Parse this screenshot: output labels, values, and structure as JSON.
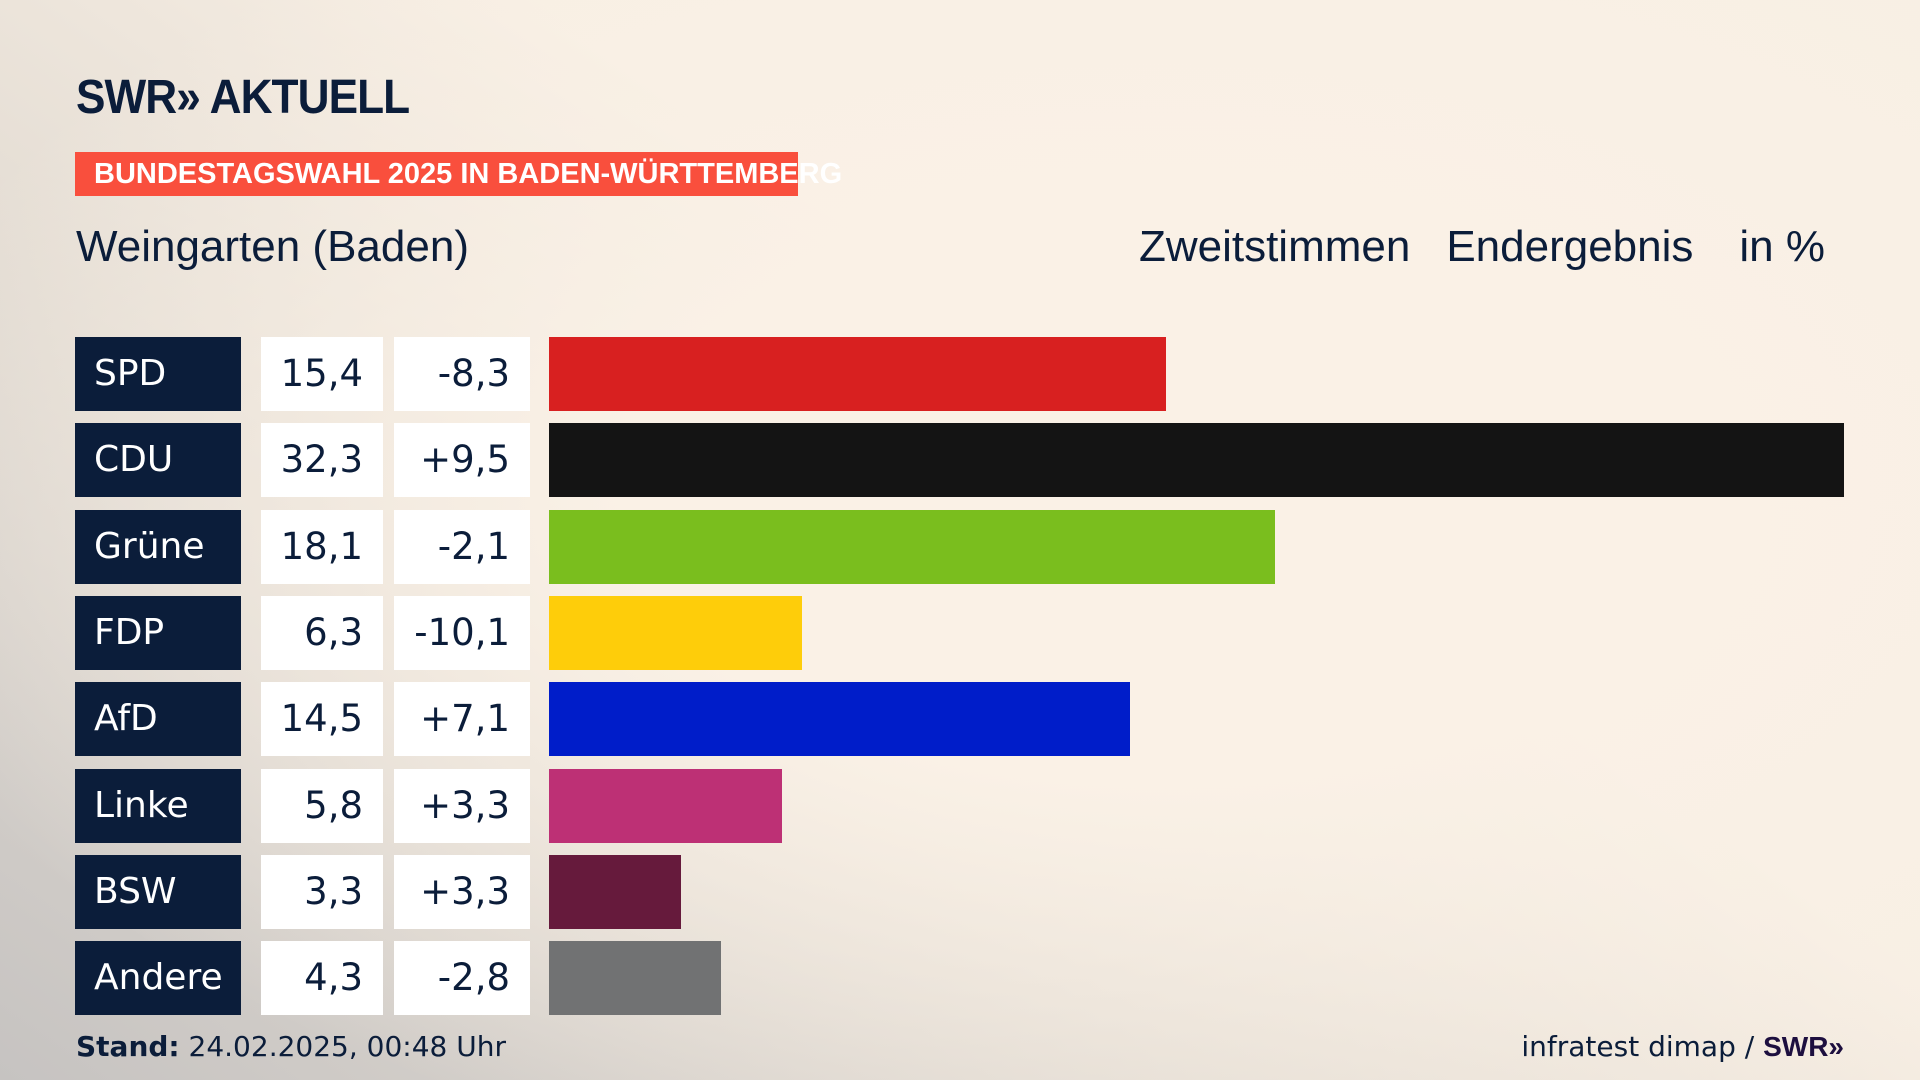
{
  "logo": "SWR» AKTUELL",
  "banner": "BUNDESTAGSWAHL 2025 IN BADEN-WÜRTTEMBERG",
  "header": {
    "title": "Weingarten (Baden)",
    "vote_type": "Zweitstimmen",
    "status": "Endergebnis",
    "unit": "in %"
  },
  "chart_data": {
    "type": "bar",
    "orientation": "horizontal",
    "title": "Weingarten (Baden) – Zweitstimmen Endergebnis in %",
    "categories": [
      "SPD",
      "CDU",
      "Grüne",
      "FDP",
      "AfD",
      "Linke",
      "BSW",
      "Andere"
    ],
    "values": [
      15.4,
      32.3,
      18.1,
      6.3,
      14.5,
      5.8,
      3.3,
      4.3
    ],
    "value_labels": [
      "15,4",
      "32,3",
      "18,1",
      "6,3",
      "14,5",
      "5,8",
      "3,3",
      "4,3"
    ],
    "change_labels": [
      "-8,3",
      "+9,5",
      "-2,1",
      "-10,1",
      "+7,1",
      "+3,3",
      "+3,3",
      "-2,8"
    ],
    "changes": [
      -8.3,
      9.5,
      -2.1,
      -10.1,
      7.1,
      3.3,
      3.3,
      -2.8
    ],
    "colors": [
      "#d82020",
      "#141414",
      "#7abe1e",
      "#fecd0a",
      "#001dc9",
      "#bd3075",
      "#661a3c",
      "#717273"
    ],
    "xlim": [
      0,
      32.3
    ]
  },
  "footer": {
    "stand_label": "Stand:",
    "stand_value": "24.02.2025, 00:48 Uhr",
    "source": "infratest dimap /",
    "source_logo": "SWR»"
  }
}
